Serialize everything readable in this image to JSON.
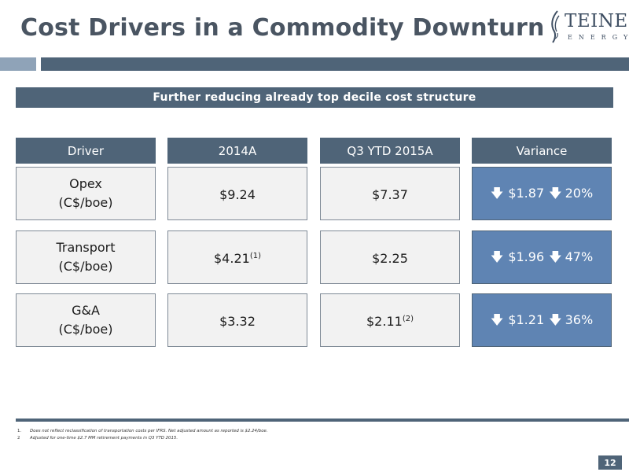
{
  "title": "Cost Drivers in a Commodity Downturn",
  "logo": {
    "name": "TEINE",
    "sub": "ENERGY"
  },
  "banner": "Further reducing already top decile cost structure",
  "headers": [
    "Driver",
    "2014A",
    "Q3 YTD 2015A",
    "Variance"
  ],
  "rows": [
    {
      "driver_line1": "Opex",
      "driver_line2": "(C$/boe)",
      "y2014": "$9.24",
      "y2014_note": "",
      "q3": "$7.37",
      "q3_note": "",
      "var_amount": "$1.87",
      "var_pct": "20%"
    },
    {
      "driver_line1": "Transport",
      "driver_line2": "(C$/boe)",
      "y2014": "$4.21",
      "y2014_note": "(1)",
      "q3": "$2.25",
      "q3_note": "",
      "var_amount": "$1.96",
      "var_pct": "47%"
    },
    {
      "driver_line1": "G&A",
      "driver_line2": "(C$/boe)",
      "y2014": "$3.32",
      "y2014_note": "",
      "q3": "$2.11",
      "q3_note": "(2)",
      "var_amount": "$1.21",
      "var_pct": "36%"
    }
  ],
  "footnotes": [
    {
      "num": "1.",
      "text": "Does not reflect reclassification of transportation costs per IFRS.  Net adjusted amount as reported is $2.24/boe."
    },
    {
      "num": "2",
      "text": "Adjusted for one-time $2.7 MM retirement payments in Q3 YTD 2015."
    }
  ],
  "page_number": "12",
  "colors": {
    "accent": "#4f6478",
    "variance": "#5f84b3",
    "cell": "#f2f2f2",
    "title": "#4a5562"
  }
}
